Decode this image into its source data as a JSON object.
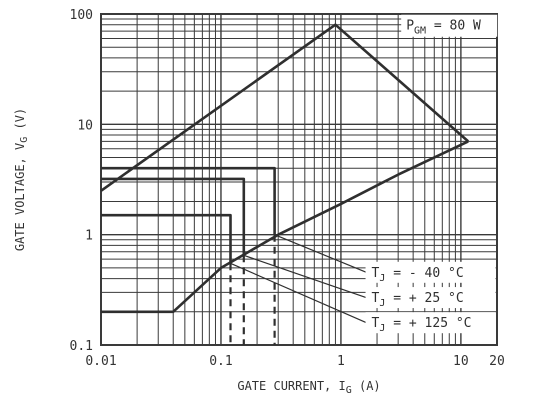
{
  "chart_data": {
    "type": "line",
    "title": "",
    "xlabel": "GATE CURRENT, I",
    "xlabel_sub": "G",
    "xlabel_unit": "(A)",
    "ylabel": "GATE VOLTAGE, V",
    "ylabel_sub": "G",
    "ylabel_unit": "(V)",
    "x_scale": "log",
    "y_scale": "log",
    "xlim": [
      0.01,
      20
    ],
    "ylim": [
      0.1,
      100
    ],
    "grid": true,
    "x_ticks": [
      {
        "value": 0.01,
        "label": "0.01"
      },
      {
        "value": 0.1,
        "label": "0.1"
      },
      {
        "value": 1,
        "label": "1"
      },
      {
        "value": 10,
        "label": "10"
      },
      {
        "value": 20,
        "label": "20"
      }
    ],
    "y_ticks": [
      {
        "value": 0.1,
        "label": "0.1"
      },
      {
        "value": 1,
        "label": "1"
      },
      {
        "value": 10,
        "label": "10"
      },
      {
        "value": 100,
        "label": "100"
      }
    ],
    "series": [
      {
        "id": "upper-limit",
        "style": "solid",
        "points": [
          [
            0.01,
            2.5
          ],
          [
            0.9,
            80
          ],
          [
            11.5,
            7
          ]
        ]
      },
      {
        "id": "lower-limit",
        "style": "solid",
        "points": [
          [
            0.01,
            0.2
          ],
          [
            0.04,
            0.2
          ],
          [
            0.1,
            0.5
          ],
          [
            0.3,
            1.0
          ],
          [
            1.0,
            1.9
          ],
          [
            3.0,
            3.5
          ],
          [
            11.5,
            7
          ]
        ]
      },
      {
        "id": "trigger-box-tj-minus-40",
        "style": "solid",
        "points": [
          [
            0.01,
            4.0
          ],
          [
            0.28,
            4.0
          ],
          [
            0.28,
            1.0
          ]
        ]
      },
      {
        "id": "trigger-box-tj-plus-25",
        "style": "solid",
        "points": [
          [
            0.01,
            3.2
          ],
          [
            0.155,
            3.2
          ],
          [
            0.155,
            0.65
          ]
        ]
      },
      {
        "id": "trigger-box-tj-plus-125",
        "style": "solid",
        "points": [
          [
            0.01,
            1.5
          ],
          [
            0.12,
            1.5
          ],
          [
            0.12,
            0.55
          ]
        ]
      },
      {
        "id": "igt-dashed-tj-minus-40",
        "style": "dashed",
        "points": [
          [
            0.28,
            1.0
          ],
          [
            0.28,
            0.1
          ]
        ]
      },
      {
        "id": "igt-dashed-tj-plus-25",
        "style": "dashed",
        "points": [
          [
            0.155,
            0.65
          ],
          [
            0.155,
            0.1
          ]
        ]
      },
      {
        "id": "igt-dashed-tj-plus-125",
        "style": "dashed",
        "points": [
          [
            0.12,
            0.55
          ],
          [
            0.12,
            0.1
          ]
        ]
      }
    ],
    "annotations": [
      {
        "id": "pgm",
        "main": "P",
        "sub": "GM",
        "rest": " = 80 W",
        "x": 3.5,
        "y": 72
      },
      {
        "id": "tj-minus-40",
        "main": "T",
        "sub": "J",
        "rest": " = -  40 °C",
        "x": 1.8,
        "y": 0.415,
        "leader_from": [
          0.28,
          1.0
        ]
      },
      {
        "id": "tj-plus-25",
        "main": "T",
        "sub": "J",
        "rest": " = +  25 °C",
        "x": 1.8,
        "y": 0.245,
        "leader_from": [
          0.155,
          0.65
        ]
      },
      {
        "id": "tj-plus-125",
        "main": "T",
        "sub": "J",
        "rest": " = + 125 °C",
        "x": 1.8,
        "y": 0.145,
        "leader_from": [
          0.12,
          0.55
        ]
      }
    ]
  }
}
